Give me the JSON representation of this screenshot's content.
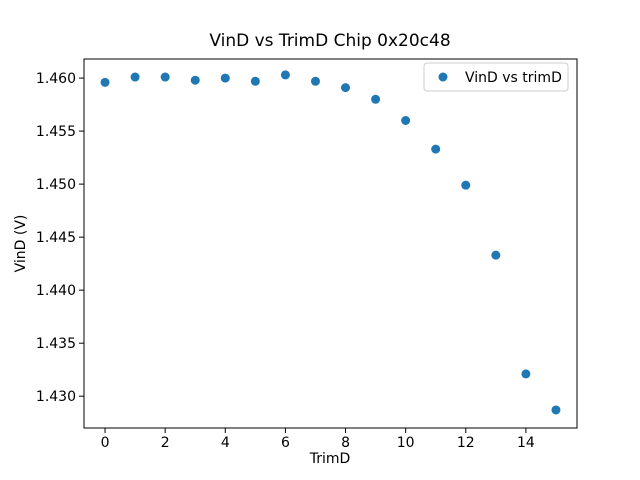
{
  "chart_data": {
    "type": "scatter",
    "title": "VinD vs TrimD Chip 0x20c48",
    "xlabel": "TrimD",
    "ylabel": "VinD (V)",
    "legend": [
      "VinD vs trimD"
    ],
    "legend_position": "upper right",
    "marker_color": "#1f77b4",
    "legend_border_color": "#cccccc",
    "x": [
      0,
      1,
      2,
      3,
      4,
      5,
      6,
      7,
      8,
      9,
      10,
      11,
      12,
      13,
      14,
      15
    ],
    "y": [
      1.4596,
      1.4601,
      1.4601,
      1.4598,
      1.46,
      1.4597,
      1.4603,
      1.4597,
      1.4591,
      1.458,
      1.456,
      1.4533,
      1.4499,
      1.4433,
      1.4321,
      1.4287
    ],
    "xlim": [
      -0.7,
      15.7
    ],
    "ylim": [
      1.427,
      1.4618
    ],
    "x_ticks": [
      0,
      2,
      4,
      6,
      8,
      10,
      12,
      14
    ],
    "y_ticks": [
      1.43,
      1.435,
      1.44,
      1.445,
      1.45,
      1.455,
      1.46
    ],
    "y_tick_decimals": 3,
    "grid": false
  }
}
